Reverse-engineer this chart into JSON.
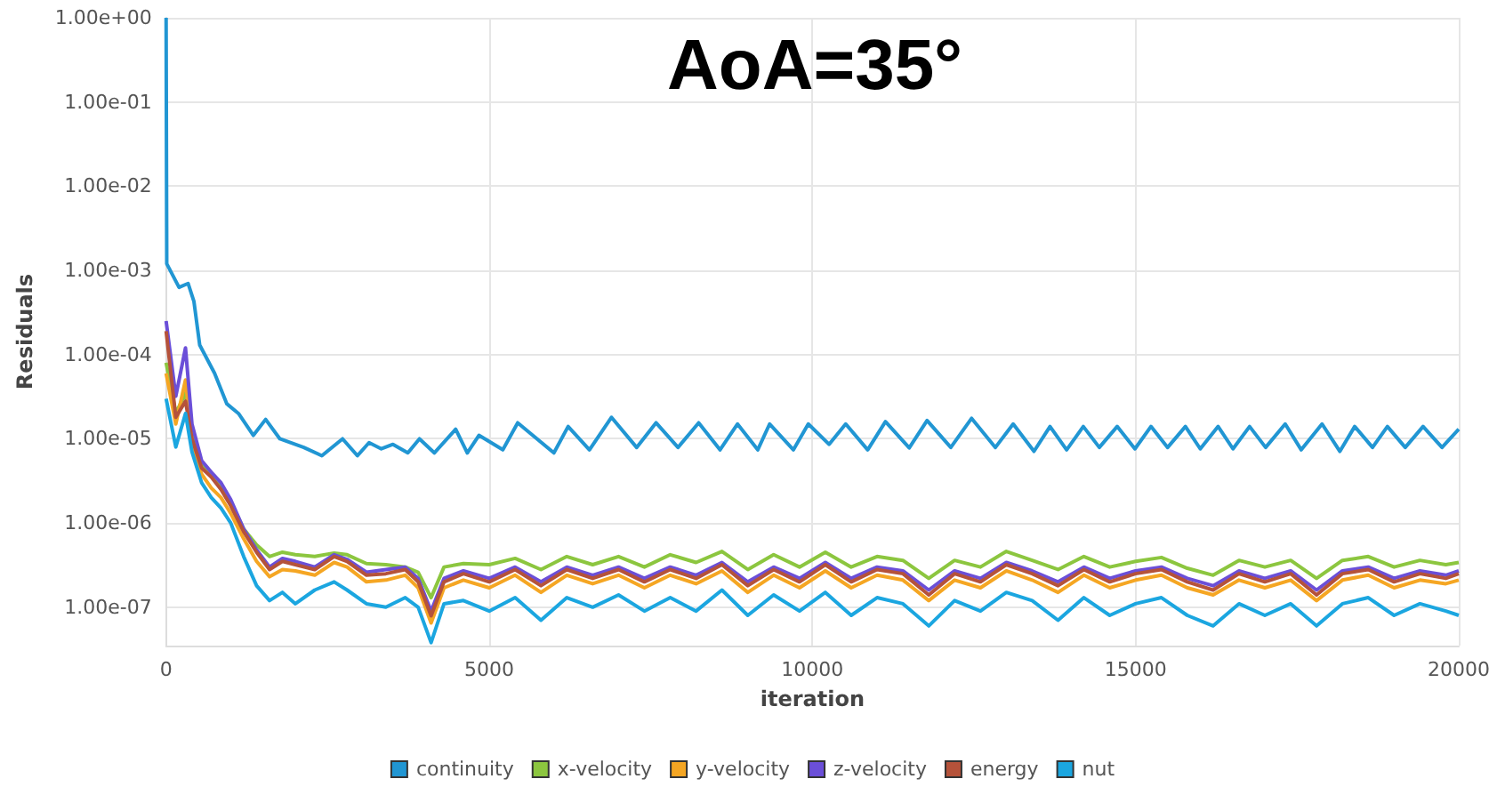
{
  "chart_data": {
    "type": "line",
    "title": "AoA=35°",
    "xlabel": "iteration",
    "ylabel": "Residuals",
    "log": "y",
    "grid": true,
    "legend": "bottom",
    "xlim": [
      0,
      20000
    ],
    "xticks": [
      0,
      5000,
      10000,
      15000,
      20000
    ],
    "ylim": [
      3.5e-08,
      1
    ],
    "yticks": [
      {
        "value": 1,
        "label": "1.00e+00"
      },
      {
        "value": 0.1,
        "label": "1.00e-01"
      },
      {
        "value": 0.01,
        "label": "1.00e-02"
      },
      {
        "value": 0.001,
        "label": "1.00e-03"
      },
      {
        "value": 0.0001,
        "label": "1.00e-04"
      },
      {
        "value": 1e-05,
        "label": "1.00e-05"
      },
      {
        "value": 1e-06,
        "label": "1.00e-06"
      },
      {
        "value": 1e-07,
        "label": "1.00e-07"
      }
    ],
    "x": [
      0,
      150,
      300,
      400,
      550,
      700,
      850,
      1000,
      1200,
      1400,
      1600,
      1800,
      2000,
      2300,
      2600,
      2800,
      3100,
      3400,
      3700,
      3900,
      4100,
      4300,
      4600,
      5000,
      5400,
      5800,
      6200,
      6600,
      7000,
      7400,
      7800,
      8200,
      8600,
      9000,
      9400,
      9800,
      10200,
      10600,
      11000,
      11400,
      11800,
      12200,
      12600,
      13000,
      13400,
      13800,
      14200,
      14600,
      15000,
      15400,
      15800,
      16200,
      16600,
      17000,
      17400,
      17800,
      18200,
      18600,
      19000,
      19400,
      19800,
      20000
    ],
    "series": [
      {
        "name": "continuity",
        "color": "#2196d3",
        "x": [
          0,
          10,
          200,
          340,
          430,
          520,
          750,
          940,
          1120,
          1350,
          1540,
          1760,
          2130,
          2410,
          2730,
          2960,
          3140,
          3330,
          3510,
          3740,
          3920,
          4150,
          4480,
          4660,
          4840,
          5210,
          5440,
          6000,
          6220,
          6550,
          6890,
          7280,
          7580,
          7920,
          8240,
          8570,
          8840,
          9154,
          9338,
          9706,
          9936,
          10257,
          10515,
          10855,
          11130,
          11498,
          11774,
          12141,
          12463,
          12831,
          13106,
          13428,
          13676,
          13933,
          14191,
          14439,
          14715,
          14990,
          15238,
          15496,
          15771,
          16001,
          16277,
          16507,
          16764,
          17012,
          17315,
          17563,
          17885,
          18161,
          18390,
          18666,
          18896,
          19172,
          19448,
          19741,
          20000
        ],
        "values": [
          1.0,
          0.0012,
          0.00063,
          0.0007,
          0.00043,
          0.00013,
          6e-05,
          2.6e-05,
          2e-05,
          1.1e-05,
          1.7e-05,
          1e-05,
          7.9e-06,
          6.3e-06,
          1e-05,
          6.3e-06,
          9e-06,
          7.6e-06,
          8.6e-06,
          6.8e-06,
          1e-05,
          6.8e-06,
          1.3e-05,
          6.8e-06,
          1.1e-05,
          7.4e-06,
          1.55e-05,
          6.8e-06,
          1.4e-05,
          7.4e-06,
          1.8e-05,
          7.9e-06,
          1.55e-05,
          7.9e-06,
          1.55e-05,
          7.4e-06,
          1.5e-05,
          7.4e-06,
          1.5e-05,
          7.4e-06,
          1.5e-05,
          8.6e-06,
          1.5e-05,
          7.4e-06,
          1.6e-05,
          7.8e-06,
          1.65e-05,
          7.9e-06,
          1.75e-05,
          7.9e-06,
          1.5e-05,
          7.1e-06,
          1.4e-05,
          7.4e-06,
          1.4e-05,
          7.9e-06,
          1.4e-05,
          7.6e-06,
          1.4e-05,
          7.9e-06,
          1.4e-05,
          7.6e-06,
          1.4e-05,
          7.6e-06,
          1.4e-05,
          7.9e-06,
          1.5e-05,
          7.4e-06,
          1.5e-05,
          7.1e-06,
          1.4e-05,
          7.9e-06,
          1.4e-05,
          7.9e-06,
          1.4e-05,
          7.9e-06,
          1.3e-05
        ]
      },
      {
        "name": "x-velocity",
        "color": "#8cc63f",
        "values": [
          8e-05,
          2e-05,
          3.5e-05,
          1.2e-05,
          4.8e-06,
          3.8e-06,
          2.7e-06,
          1.8e-06,
          8.5e-07,
          5.5e-07,
          4e-07,
          4.5e-07,
          4.2e-07,
          4e-07,
          4.4e-07,
          4.2e-07,
          3.3e-07,
          3.2e-07,
          3e-07,
          2.6e-07,
          1.3e-07,
          3e-07,
          3.3e-07,
          3.2e-07,
          3.8e-07,
          2.8e-07,
          4e-07,
          3.2e-07,
          4e-07,
          3e-07,
          4.2e-07,
          3.4e-07,
          4.6e-07,
          2.8e-07,
          4.2e-07,
          3e-07,
          4.5e-07,
          3e-07,
          4e-07,
          3.6e-07,
          2.2e-07,
          3.6e-07,
          3e-07,
          4.6e-07,
          3.6e-07,
          2.8e-07,
          4e-07,
          3e-07,
          3.5e-07,
          3.9e-07,
          2.9e-07,
          2.4e-07,
          3.6e-07,
          3e-07,
          3.6e-07,
          2.2e-07,
          3.6e-07,
          4e-07,
          3e-07,
          3.6e-07,
          3.2e-07,
          3.4e-07
        ]
      },
      {
        "name": "y-velocity",
        "color": "#f5a623",
        "values": [
          6e-05,
          1.5e-05,
          5e-05,
          9e-06,
          3.8e-06,
          2.6e-06,
          2e-06,
          1.3e-06,
          6.5e-07,
          3.5e-07,
          2.3e-07,
          2.8e-07,
          2.7e-07,
          2.4e-07,
          3.4e-07,
          3e-07,
          2e-07,
          2.1e-07,
          2.4e-07,
          1.7e-07,
          6.5e-08,
          1.7e-07,
          2.1e-07,
          1.7e-07,
          2.4e-07,
          1.5e-07,
          2.4e-07,
          1.9e-07,
          2.4e-07,
          1.7e-07,
          2.4e-07,
          1.9e-07,
          2.7e-07,
          1.5e-07,
          2.4e-07,
          1.7e-07,
          2.7e-07,
          1.7e-07,
          2.4e-07,
          2.1e-07,
          1.2e-07,
          2.1e-07,
          1.7e-07,
          2.7e-07,
          2.1e-07,
          1.5e-07,
          2.4e-07,
          1.7e-07,
          2.1e-07,
          2.4e-07,
          1.7e-07,
          1.4e-07,
          2.1e-07,
          1.7e-07,
          2.1e-07,
          1.2e-07,
          2.1e-07,
          2.4e-07,
          1.7e-07,
          2.1e-07,
          1.9e-07,
          2.1e-07
        ]
      },
      {
        "name": "z-velocity",
        "color": "#6b4fd8",
        "values": [
          0.00025,
          3.2e-05,
          0.00012,
          1.5e-05,
          5.5e-06,
          4e-06,
          3e-06,
          1.9e-06,
          8.5e-07,
          4.8e-07,
          3e-07,
          3.8e-07,
          3.5e-07,
          3e-07,
          4.2e-07,
          3.7e-07,
          2.6e-07,
          2.8e-07,
          3e-07,
          2.2e-07,
          9e-08,
          2.2e-07,
          2.7e-07,
          2.2e-07,
          3e-07,
          2e-07,
          3e-07,
          2.4e-07,
          3e-07,
          2.2e-07,
          3e-07,
          2.4e-07,
          3.4e-07,
          2e-07,
          3e-07,
          2.2e-07,
          3.4e-07,
          2.2e-07,
          3e-07,
          2.7e-07,
          1.6e-07,
          2.7e-07,
          2.2e-07,
          3.4e-07,
          2.7e-07,
          2e-07,
          3e-07,
          2.2e-07,
          2.7e-07,
          3e-07,
          2.2e-07,
          1.8e-07,
          2.7e-07,
          2.2e-07,
          2.7e-07,
          1.6e-07,
          2.7e-07,
          3e-07,
          2.2e-07,
          2.7e-07,
          2.4e-07,
          2.7e-07
        ]
      },
      {
        "name": "energy",
        "color": "#b5523a",
        "values": [
          0.00019,
          1.8e-05,
          2.8e-05,
          1e-05,
          4.5e-06,
          3.5e-06,
          2.5e-06,
          1.6e-06,
          7.9e-07,
          4.5e-07,
          2.8e-07,
          3.5e-07,
          3.2e-07,
          2.8e-07,
          4e-07,
          3.5e-07,
          2.4e-07,
          2.5e-07,
          2.8e-07,
          2e-07,
          7.9e-08,
          2e-07,
          2.5e-07,
          2e-07,
          2.8e-07,
          1.8e-07,
          2.8e-07,
          2.2e-07,
          2.8e-07,
          2e-07,
          2.8e-07,
          2.2e-07,
          3.2e-07,
          1.8e-07,
          2.8e-07,
          2e-07,
          3.2e-07,
          2e-07,
          2.8e-07,
          2.5e-07,
          1.4e-07,
          2.5e-07,
          2e-07,
          3.2e-07,
          2.5e-07,
          1.8e-07,
          2.8e-07,
          2e-07,
          2.5e-07,
          2.8e-07,
          2e-07,
          1.6e-07,
          2.5e-07,
          2e-07,
          2.5e-07,
          1.4e-07,
          2.5e-07,
          2.8e-07,
          2e-07,
          2.5e-07,
          2.2e-07,
          2.5e-07
        ]
      },
      {
        "name": "nut",
        "color": "#1ba6e0",
        "values": [
          3e-05,
          8e-06,
          2e-05,
          7e-06,
          3e-06,
          2e-06,
          1.5e-06,
          1e-06,
          4e-07,
          1.8e-07,
          1.2e-07,
          1.5e-07,
          1.1e-07,
          1.6e-07,
          2e-07,
          1.6e-07,
          1.1e-07,
          1e-07,
          1.3e-07,
          1e-07,
          3.8e-08,
          1.1e-07,
          1.2e-07,
          9e-08,
          1.3e-07,
          7e-08,
          1.3e-07,
          1e-07,
          1.4e-07,
          9e-08,
          1.3e-07,
          9e-08,
          1.6e-07,
          8e-08,
          1.4e-07,
          9e-08,
          1.5e-07,
          8e-08,
          1.3e-07,
          1.1e-07,
          6e-08,
          1.2e-07,
          9e-08,
          1.5e-07,
          1.2e-07,
          7e-08,
          1.3e-07,
          8e-08,
          1.1e-07,
          1.3e-07,
          8e-08,
          6e-08,
          1.1e-07,
          8e-08,
          1.1e-07,
          6e-08,
          1.1e-07,
          1.3e-07,
          8e-08,
          1.1e-07,
          9e-08,
          8e-08
        ]
      }
    ]
  }
}
